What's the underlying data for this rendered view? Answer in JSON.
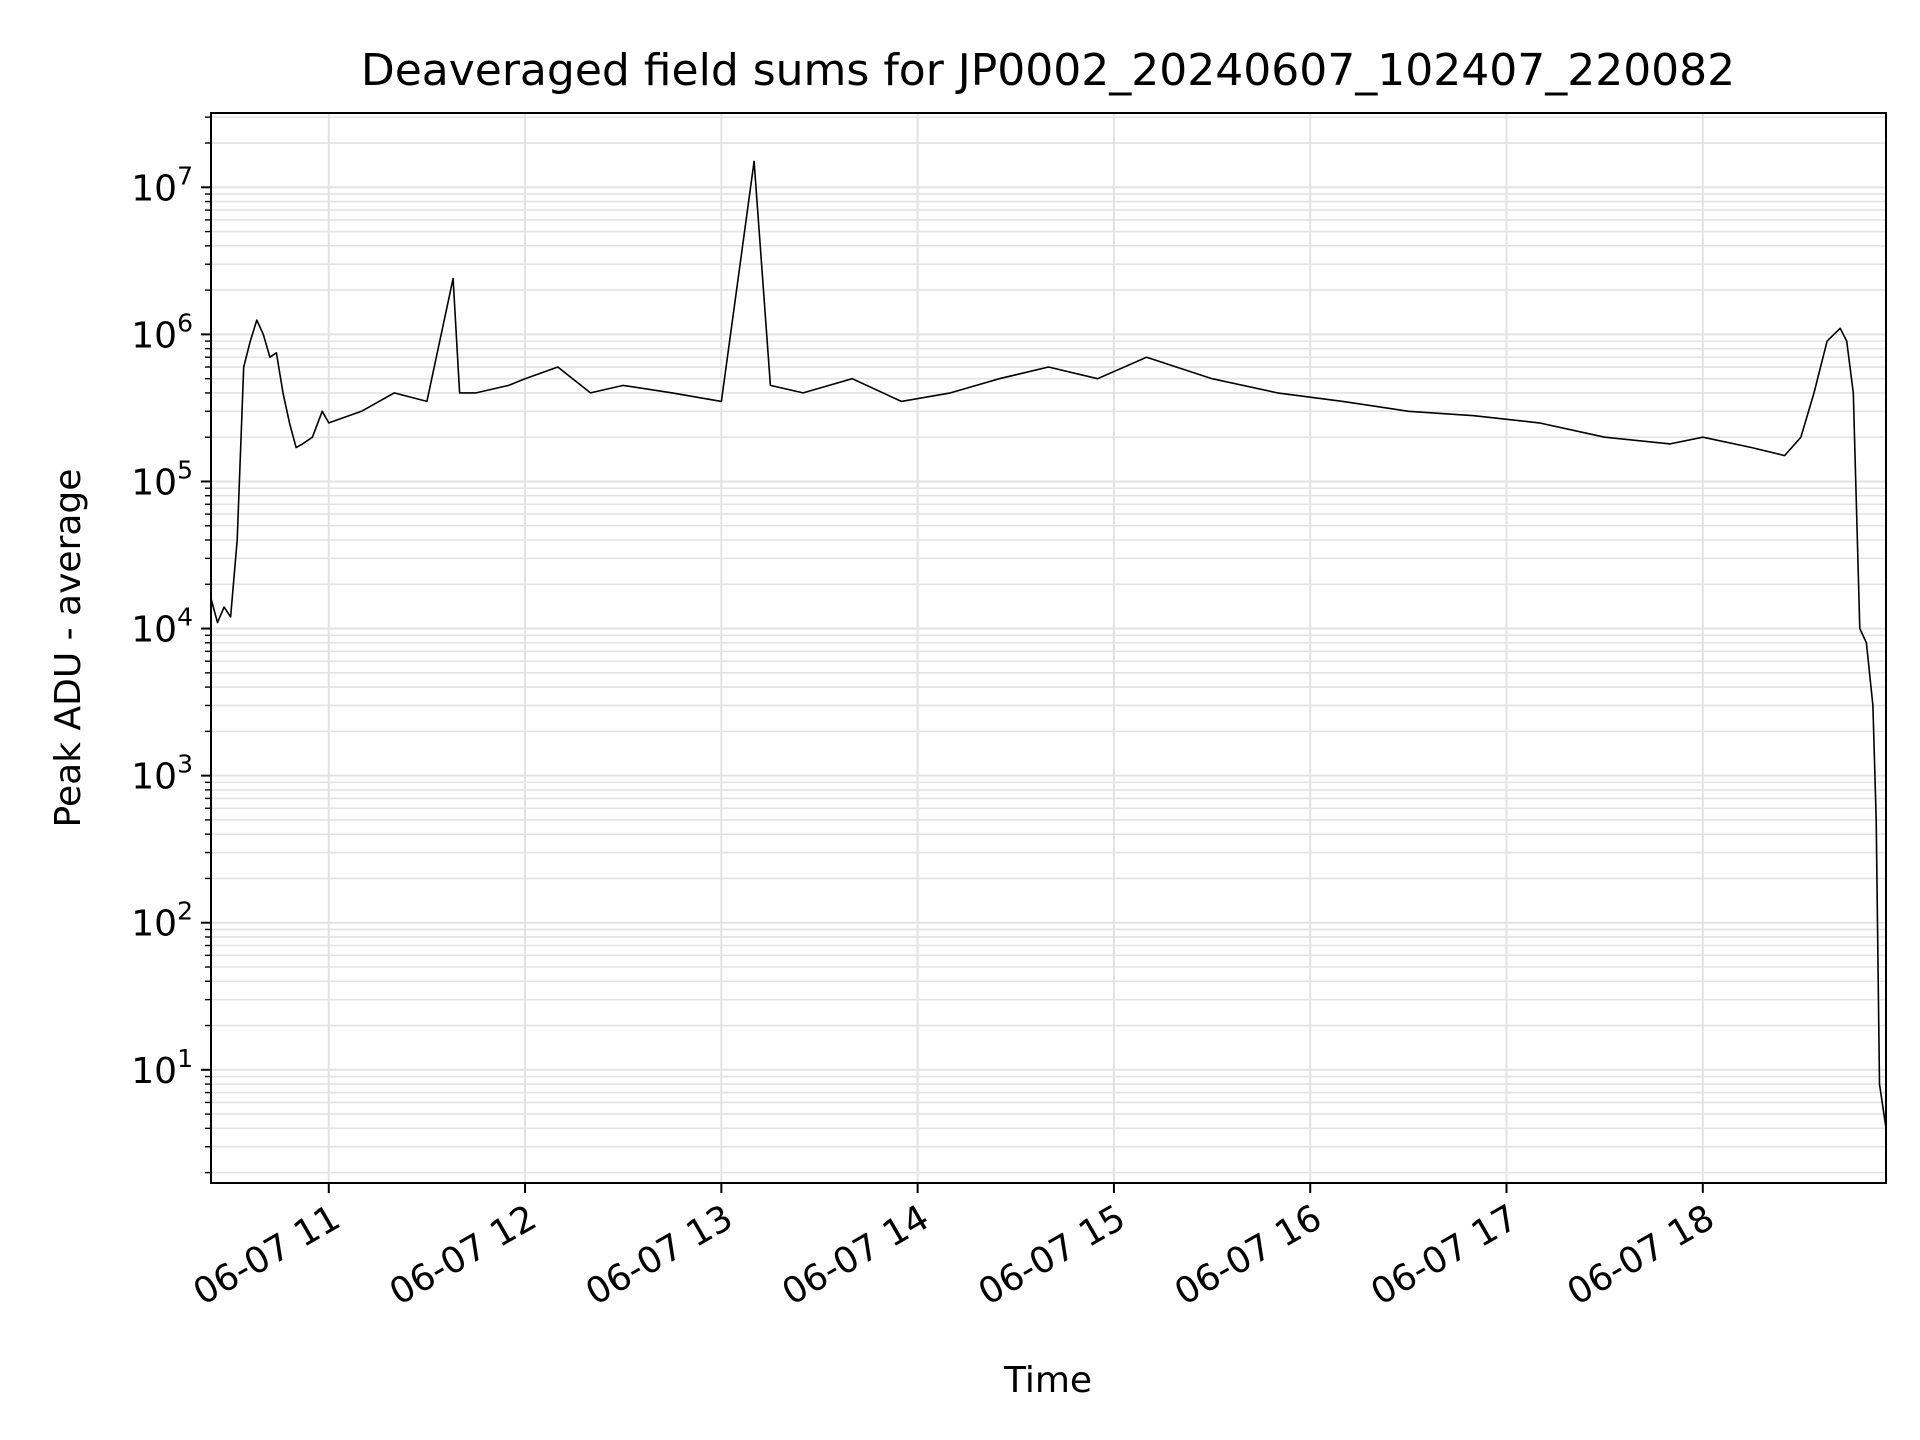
{
  "chart_data": {
    "type": "line",
    "title": "Deaveraged field sums for JP0002_20240607_102407_220082",
    "xlabel": "Time",
    "ylabel": "Peak ADU - average",
    "x_ticks": [
      "06-07 11",
      "06-07 12",
      "06-07 13",
      "06-07 14",
      "06-07 15",
      "06-07 16",
      "06-07 17",
      "06-07 18"
    ],
    "y_ticks": [
      {
        "base": "10",
        "exp": "1"
      },
      {
        "base": "10",
        "exp": "2"
      },
      {
        "base": "10",
        "exp": "3"
      },
      {
        "base": "10",
        "exp": "4"
      },
      {
        "base": "10",
        "exp": "5"
      },
      {
        "base": "10",
        "exp": "6"
      },
      {
        "base": "10",
        "exp": "7"
      }
    ],
    "y_scale": "log",
    "xlim": [
      "2024-06-07T10:24",
      "2024-06-07T18:56"
    ],
    "ylim": [
      1.7,
      32000000.0
    ],
    "grid": true,
    "line_color": "#000000",
    "grid_color": "#e3e3e3",
    "series": [
      {
        "x": [
          "2024-06-07T10:24",
          "2024-06-07T10:26",
          "2024-06-07T10:28",
          "2024-06-07T10:30",
          "2024-06-07T10:32",
          "2024-06-07T10:34",
          "2024-06-07T10:36",
          "2024-06-07T10:38",
          "2024-06-07T10:40",
          "2024-06-07T10:42",
          "2024-06-07T10:44",
          "2024-06-07T10:46",
          "2024-06-07T10:48",
          "2024-06-07T10:50",
          "2024-06-07T10:52",
          "2024-06-07T10:55",
          "2024-06-07T10:58",
          "2024-06-07T11:00",
          "2024-06-07T11:10",
          "2024-06-07T11:20",
          "2024-06-07T11:30",
          "2024-06-07T11:38",
          "2024-06-07T11:40",
          "2024-06-07T11:45",
          "2024-06-07T11:55",
          "2024-06-07T12:00",
          "2024-06-07T12:10",
          "2024-06-07T12:20",
          "2024-06-07T12:30",
          "2024-06-07T12:45",
          "2024-06-07T13:00",
          "2024-06-07T13:10",
          "2024-06-07T13:15",
          "2024-06-07T13:25",
          "2024-06-07T13:40",
          "2024-06-07T13:55",
          "2024-06-07T14:10",
          "2024-06-07T14:25",
          "2024-06-07T14:40",
          "2024-06-07T14:55",
          "2024-06-07T15:10",
          "2024-06-07T15:30",
          "2024-06-07T15:50",
          "2024-06-07T16:10",
          "2024-06-07T16:30",
          "2024-06-07T16:50",
          "2024-06-07T17:10",
          "2024-06-07T17:30",
          "2024-06-07T17:50",
          "2024-06-07T18:00",
          "2024-06-07T18:15",
          "2024-06-07T18:25",
          "2024-06-07T18:30",
          "2024-06-07T18:34",
          "2024-06-07T18:38",
          "2024-06-07T18:42",
          "2024-06-07T18:44",
          "2024-06-07T18:46",
          "2024-06-07T18:48",
          "2024-06-07T18:50",
          "2024-06-07T18:52",
          "2024-06-07T18:53",
          "2024-06-07T18:54",
          "2024-06-07T18:56"
        ],
        "y": [
          16000,
          11000,
          14000,
          12000,
          40000,
          600000,
          900000,
          1250000,
          1000000,
          700000,
          750000,
          400000,
          250000,
          170000,
          180000,
          200000,
          300000,
          250000,
          300000,
          400000,
          350000,
          2400000,
          400000,
          400000,
          450000,
          500000,
          600000,
          400000,
          450000,
          400000,
          350000,
          15000000,
          450000,
          400000,
          500000,
          350000,
          400000,
          500000,
          600000,
          500000,
          700000,
          500000,
          400000,
          350000,
          300000,
          280000,
          250000,
          200000,
          180000,
          200000,
          170000,
          150000,
          200000,
          400000,
          900000,
          1100000,
          900000,
          400000,
          10000,
          8000,
          3000,
          500,
          8,
          4
        ]
      }
    ]
  }
}
